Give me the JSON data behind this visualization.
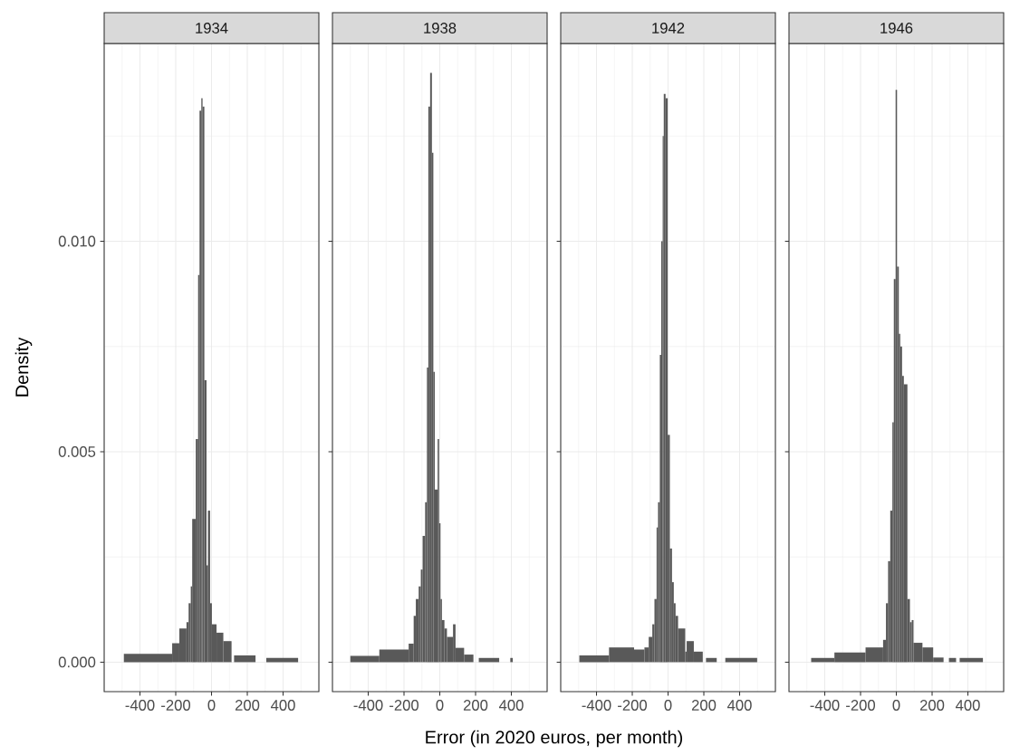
{
  "chart_data": [
    {
      "type": "histogram",
      "title": "1934",
      "xlabel": "Error (in 2020 euros, per month)",
      "ylabel": "Density",
      "color": "#595959",
      "bins": [
        -490,
        -220,
        -180,
        -140,
        -128,
        -116,
        -108,
        -88,
        -75,
        -67,
        -57,
        -50,
        -40,
        -28,
        -20,
        -8,
        2,
        28,
        66,
        112,
        126,
        246,
        306,
        484
      ],
      "values": [
        0.0002,
        0.00045,
        0.0008,
        0.00095,
        0.0014,
        0.0018,
        0.0034,
        0.0053,
        0.0092,
        0.0131,
        0.0134,
        0.0132,
        0.0067,
        0.0023,
        0.0036,
        0.0014,
        0.0009,
        0.0007,
        0.0005,
        0,
        0.00016,
        0,
        0.0001
      ],
      "xlim": [
        -600,
        600
      ],
      "ylim": [
        -0.0007,
        0.0147
      ],
      "xticks": [
        -400,
        -200,
        0,
        200,
        400
      ],
      "yticks": [
        {
          "value": 0,
          "label": "0.000"
        },
        {
          "value": 0.005,
          "label": "0.005"
        },
        {
          "value": 0.01,
          "label": "0.010"
        }
      ],
      "grid": true
    },
    {
      "type": "histogram",
      "title": "1938",
      "color": "#595959",
      "bins": [
        -500,
        -338,
        -174,
        -146,
        -134,
        -118,
        -106,
        -96,
        -82,
        -72,
        -64,
        -54,
        -44,
        -36,
        -28,
        -12,
        -4,
        4,
        12,
        26,
        40,
        74,
        88,
        136,
        188,
        218,
        332,
        394,
        408
      ],
      "values": [
        0.00015,
        0.0003,
        0.00044,
        0.0011,
        0.0015,
        0.0018,
        0.0022,
        0.003,
        0.0038,
        0.007,
        0.0132,
        0.014,
        0.0121,
        0.0069,
        0.0041,
        0.0053,
        0.0033,
        0.0015,
        0.001,
        0.0008,
        0.0006,
        0.0009,
        0.00034,
        0.00018,
        0,
        0.0001,
        0,
        0.0001
      ],
      "xlim": [
        -600,
        600
      ],
      "ylim": [
        -0.0007,
        0.0147
      ],
      "xticks": [
        -400,
        -200,
        0,
        200,
        400
      ],
      "yticks": [
        {
          "value": 0,
          "label": null
        },
        {
          "value": 0.005,
          "label": null
        },
        {
          "value": 0.01,
          "label": null
        }
      ],
      "grid": true,
      "tick_labels": "x"
    },
    {
      "type": "histogram",
      "title": "1942",
      "color": "#595959",
      "bins": [
        -496,
        -330,
        -190,
        -132,
        -108,
        -88,
        -76,
        -64,
        -56,
        -46,
        -38,
        -30,
        -24,
        -14,
        -2,
        10,
        22,
        32,
        42,
        56,
        96,
        104,
        144,
        194,
        212,
        272,
        320,
        498
      ],
      "values": [
        0.00016,
        0.00035,
        0.0003,
        0.00035,
        0.0006,
        0.0009,
        0.0015,
        0.0032,
        0.0038,
        0.0073,
        0.01,
        0.0125,
        0.0135,
        0.0134,
        0.0054,
        0.0027,
        0.0019,
        0.0014,
        0.0011,
        0.0008,
        0.00025,
        0.0005,
        0.00025,
        0,
        0.0001,
        0,
        0.0001
      ],
      "xlim": [
        -600,
        600
      ],
      "ylim": [
        -0.0007,
        0.0147
      ],
      "xticks": [
        -400,
        -200,
        0,
        200,
        400
      ],
      "yticks": [
        {
          "value": 0,
          "label": null
        },
        {
          "value": 0.005,
          "label": null
        },
        {
          "value": 0.01,
          "label": null
        }
      ],
      "grid": true,
      "tick_labels": "x"
    },
    {
      "type": "histogram",
      "title": "1946",
      "color": "#595959",
      "bins": [
        -476,
        -346,
        -172,
        -74,
        -58,
        -46,
        -34,
        -22,
        -14,
        -4,
        4,
        14,
        22,
        32,
        42,
        62,
        76,
        86,
        96,
        146,
        206,
        264,
        294,
        334,
        354,
        484
      ],
      "values": [
        0.0001,
        0.00023,
        0.00035,
        0.00053,
        0.0014,
        0.0024,
        0.0036,
        0.0057,
        0.0091,
        0.0136,
        0.0094,
        0.0078,
        0.0075,
        0.0068,
        0.0066,
        0.0015,
        0.00095,
        0.001,
        0.00046,
        0.00035,
        0.00011,
        0,
        0.0001,
        0,
        0.0001
      ],
      "xlim": [
        -600,
        600
      ],
      "ylim": [
        -0.0007,
        0.0147
      ],
      "xticks": [
        -400,
        -200,
        0,
        200,
        400
      ],
      "yticks": [
        {
          "value": 0,
          "label": null
        },
        {
          "value": 0.005,
          "label": null
        },
        {
          "value": 0.01,
          "label": null
        }
      ],
      "grid": true,
      "tick_labels": "x"
    }
  ]
}
